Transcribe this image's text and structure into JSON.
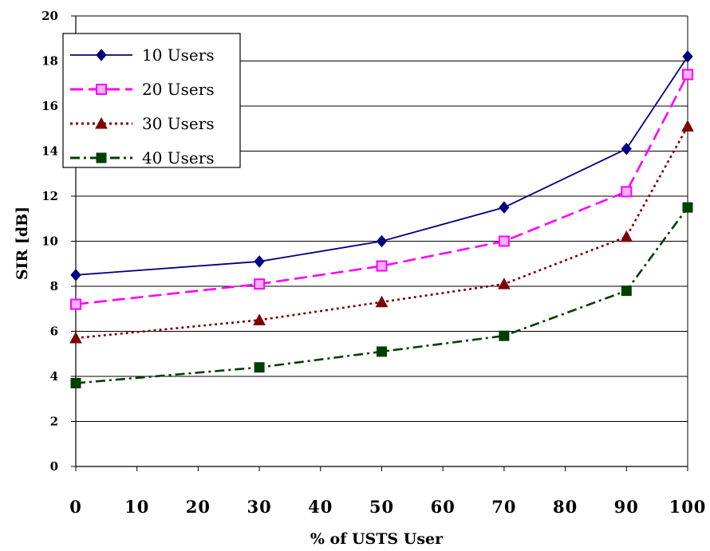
{
  "chart_data": {
    "type": "line",
    "title": "",
    "xlabel": "% of USTS User",
    "ylabel": "SIR [dB]",
    "x": [
      0,
      30,
      50,
      70,
      90,
      100
    ],
    "xticks": [
      "0",
      "10",
      "20",
      "30",
      "40",
      "50",
      "60",
      "70",
      "80",
      "90",
      "100"
    ],
    "yticks": [
      "0",
      "2",
      "4",
      "6",
      "8",
      "10",
      "12",
      "14",
      "16",
      "18",
      "20"
    ],
    "xlim": [
      0,
      100
    ],
    "ylim": [
      0,
      20
    ],
    "grid": "horizontal",
    "legend_position": "top-left",
    "series": [
      {
        "name": "10 Users",
        "values": [
          8.5,
          9.1,
          10.0,
          11.5,
          14.1,
          18.2
        ],
        "color": "#000080",
        "dash": "solid",
        "marker": "diamond"
      },
      {
        "name": "20 Users",
        "values": [
          7.2,
          8.1,
          8.9,
          10.0,
          12.2,
          17.4
        ],
        "color": "#ff00ff",
        "dash": "dashed",
        "marker": "square-open"
      },
      {
        "name": "30 Users",
        "values": [
          5.7,
          6.5,
          7.3,
          8.1,
          10.2,
          15.1
        ],
        "color": "#800000",
        "dash": "dotted",
        "marker": "triangle"
      },
      {
        "name": "40 Users",
        "values": [
          3.7,
          4.4,
          5.1,
          5.8,
          7.8,
          11.5
        ],
        "color": "#004000",
        "dash": "dash-dot",
        "marker": "square"
      }
    ]
  }
}
